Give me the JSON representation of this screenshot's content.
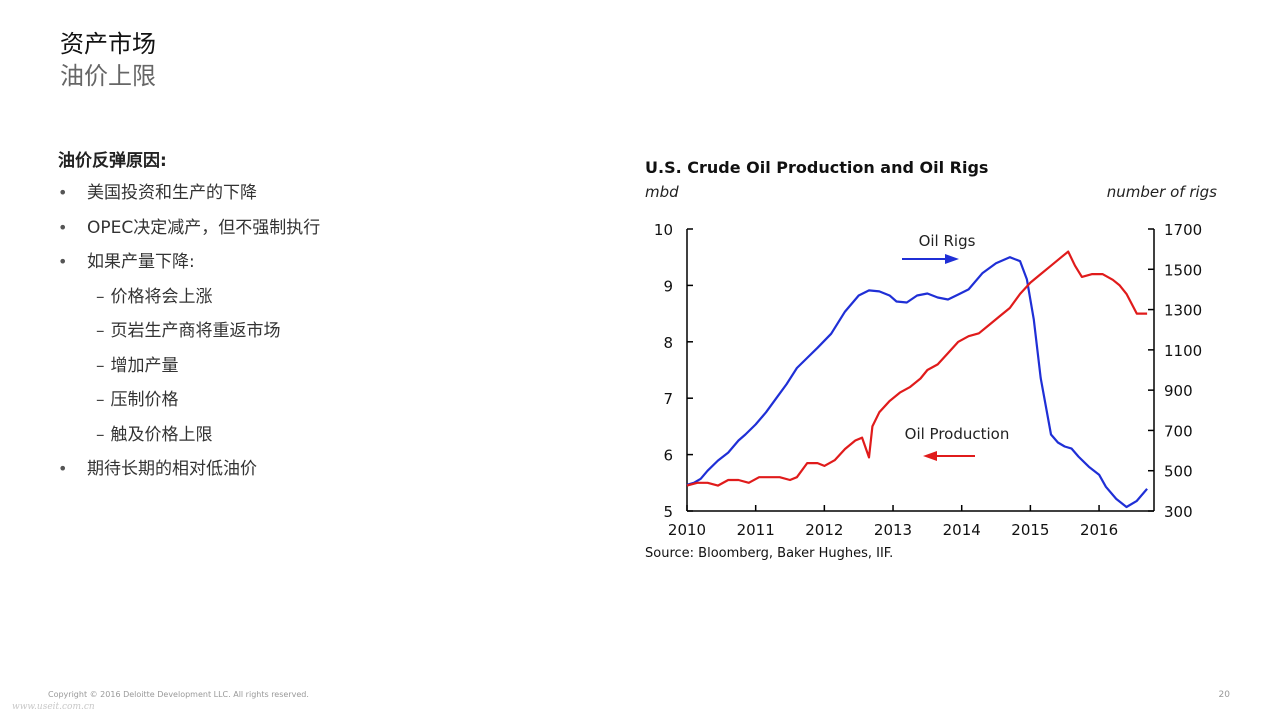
{
  "slide": {
    "title": "资产市场",
    "subtitle": "油价上限"
  },
  "bullets": {
    "heading": "油价反弹原因:",
    "bullet_symbol": "•",
    "dash_symbol": "–",
    "items": [
      "美国投资和生产的下降",
      "OPEC决定减产，但不强制执行",
      "如果产量下降:"
    ],
    "subitems": [
      "价格将会上涨",
      "页岩生产商将重返市场",
      "增加产量",
      "压制价格",
      "触及价格上限"
    ],
    "last_item": "期待长期的相对低油价"
  },
  "chart_data": {
    "type": "line",
    "title": "U.S. Crude Oil Production and Oil Rigs",
    "ylabel": "mbd",
    "y2label": "number of rigs",
    "source": "Source: Bloomberg, Baker Hughes, IIF.",
    "xlim": [
      2010,
      2016.8
    ],
    "ylim": [
      5,
      10
    ],
    "y2lim": [
      300,
      1700
    ],
    "xticks": [
      "2010",
      "2011",
      "2012",
      "2013",
      "2014",
      "2015",
      "2016"
    ],
    "yticks": [
      "5",
      "6",
      "7",
      "8",
      "9",
      "10"
    ],
    "y2ticks": [
      "300",
      "500",
      "700",
      "900",
      "1100",
      "1300",
      "1500",
      "1700"
    ],
    "series": [
      {
        "name": "Oil Rigs",
        "axis": "right",
        "color": "#1f2fd6",
        "x": [
          2010.0,
          2010.1,
          2010.2,
          2010.3,
          2010.45,
          2010.6,
          2010.75,
          2010.85,
          2011.0,
          2011.15,
          2011.3,
          2011.45,
          2011.6,
          2011.75,
          2011.9,
          2012.1,
          2012.3,
          2012.5,
          2012.65,
          2012.8,
          2012.95,
          2013.05,
          2013.2,
          2013.35,
          2013.5,
          2013.65,
          2013.8,
          2013.95,
          2014.1,
          2014.3,
          2014.5,
          2014.7,
          2014.85,
          2014.95,
          2015.05,
          2015.15,
          2015.3,
          2015.4,
          2015.5,
          2015.6,
          2015.7,
          2015.85,
          2016.0,
          2016.1,
          2016.25,
          2016.4,
          2016.55,
          2016.7
        ],
        "values": [
          430,
          440,
          460,
          500,
          550,
          590,
          650,
          680,
          730,
          790,
          860,
          930,
          1010,
          1060,
          1110,
          1180,
          1290,
          1370,
          1395,
          1390,
          1370,
          1340,
          1335,
          1370,
          1380,
          1360,
          1350,
          1375,
          1400,
          1480,
          1530,
          1560,
          1540,
          1450,
          1250,
          960,
          680,
          640,
          620,
          610,
          570,
          520,
          480,
          420,
          360,
          320,
          350,
          410
        ]
      },
      {
        "name": "Oil Production",
        "axis": "left",
        "color": "#e01b1b",
        "x": [
          2010.0,
          2010.15,
          2010.3,
          2010.45,
          2010.6,
          2010.75,
          2010.9,
          2011.05,
          2011.2,
          2011.35,
          2011.5,
          2011.6,
          2011.75,
          2011.9,
          2012.0,
          2012.15,
          2012.3,
          2012.45,
          2012.55,
          2012.65,
          2012.7,
          2012.8,
          2012.95,
          2013.1,
          2013.25,
          2013.4,
          2013.5,
          2013.65,
          2013.8,
          2013.95,
          2014.1,
          2014.25,
          2014.4,
          2014.55,
          2014.7,
          2014.85,
          2015.0,
          2015.15,
          2015.3,
          2015.45,
          2015.55,
          2015.65,
          2015.75,
          2015.9,
          2016.05,
          2016.2,
          2016.3,
          2016.4,
          2016.55,
          2016.7
        ],
        "values": [
          5.45,
          5.5,
          5.5,
          5.45,
          5.55,
          5.55,
          5.5,
          5.6,
          5.6,
          5.6,
          5.55,
          5.6,
          5.85,
          5.85,
          5.8,
          5.9,
          6.1,
          6.25,
          6.3,
          5.95,
          6.5,
          6.75,
          6.95,
          7.1,
          7.2,
          7.35,
          7.5,
          7.6,
          7.8,
          8.0,
          8.1,
          8.15,
          8.3,
          8.45,
          8.6,
          8.85,
          9.05,
          9.2,
          9.35,
          9.5,
          9.6,
          9.35,
          9.15,
          9.2,
          9.2,
          9.1,
          9.0,
          8.85,
          8.5,
          8.5
        ]
      }
    ],
    "annotations": [
      {
        "text": "Oil Rigs",
        "at_series": "Oil Rigs"
      },
      {
        "text": "Oil Production",
        "at_series": "Oil Production"
      }
    ]
  },
  "footer": {
    "copyright": "Copyright © 2016 Deloitte Development LLC. All rights reserved.",
    "page_number": "20",
    "watermark": "www.useit.com.cn"
  }
}
